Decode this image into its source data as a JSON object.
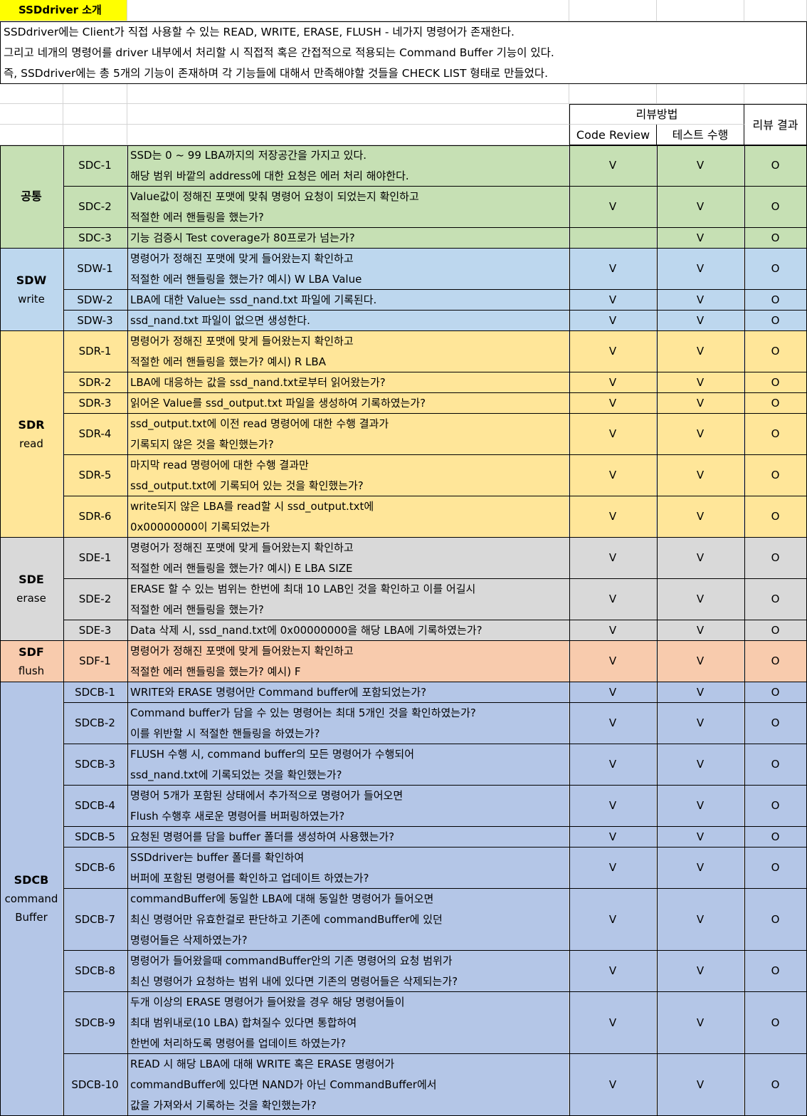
{
  "title": "SSDdriver 소개",
  "intro_lines": "SSDdriver에는 Client가 직접 사용할 수 있는 READ, WRITE, ERASE, FLUSH - 네가지 명령어가 존재한다.\n그리고 네개의 명령어를 driver 내부에서 처리할 시 직접적 혹은 간접적으로 적용되는 Command Buffer 기능이 있다.\n즉, SSDdriver에는 총 5개의 기능이 존재하며 각 기능들에 대해서 만족해야할 것들을 CHECK LIST 형태로 만들었다.",
  "header": {
    "review_method": "리뷰방법",
    "code_review": "Code Review",
    "test": "테스트 수행",
    "result": "리뷰 결과"
  },
  "colors": {
    "공통": "#c6e0b4",
    "SDW": "#bdd7ee",
    "SDR": "#ffe699",
    "SDE": "#d9d9d9",
    "SDF": "#f8cbad",
    "SDCB": "#b4c6e7",
    "title": "#ffff00"
  },
  "groups": [
    {
      "name": "공통",
      "sub": "",
      "color": "bg-green",
      "rows": [
        {
          "id": "SDC-1",
          "text": "SSD는 0 ~ 99 LBA까지의 저장공간을 가지고 있다.\n해당 범위 바깥의 address에 대한 요청은 에러 처리 해야한다.",
          "code": "V",
          "test": "V",
          "result": "O",
          "lines": 2
        },
        {
          "id": "SDC-2",
          "text": "Value값이 정해진 포맷에 맞춰 명령어 요청이 되었는지 확인하고\n적절한 에러 핸들링을 했는가?",
          "code": "V",
          "test": "V",
          "result": "O",
          "lines": 2
        },
        {
          "id": "SDC-3",
          "text": "기능 검증시 Test coverage가 80프로가 넘는가?",
          "code": "",
          "test": "V",
          "result": "O",
          "lines": 1
        }
      ]
    },
    {
      "name": "SDW",
      "sub": "write",
      "color": "bg-lblue",
      "rows": [
        {
          "id": "SDW-1",
          "text": "명령어가 정해진 포맷에 맞게 들어왔는지 확인하고\n적절한 에러 핸들링을 했는가? 예시) W LBA Value",
          "code": "V",
          "test": "V",
          "result": "O",
          "lines": 2
        },
        {
          "id": "SDW-2",
          "text": "LBA에 대한 Value는 ssd_nand.txt 파일에 기록된다.",
          "code": "V",
          "test": "V",
          "result": "O",
          "lines": 1
        },
        {
          "id": "SDW-3",
          "text": "ssd_nand.txt 파일이 없으면 생성한다.",
          "code": "V",
          "test": "V",
          "result": "O",
          "lines": 1
        }
      ]
    },
    {
      "name": "SDR",
      "sub": "read",
      "color": "bg-yellow",
      "rows": [
        {
          "id": "SDR-1",
          "text": "명령어가 정해진 포맷에 맞게 들어왔는지 확인하고\n적절한 에러 핸들링을 했는가? 예시) R LBA",
          "code": "V",
          "test": "V",
          "result": "O",
          "lines": 2
        },
        {
          "id": "SDR-2",
          "text": "LBA에 대응하는 값을 ssd_nand.txt로부터 읽어왔는가?",
          "code": "V",
          "test": "V",
          "result": "O",
          "lines": 1
        },
        {
          "id": "SDR-3",
          "text": "읽어온 Value를 ssd_output.txt 파일을 생성하여 기록하였는가?",
          "code": "V",
          "test": "V",
          "result": "O",
          "lines": 1
        },
        {
          "id": "SDR-4",
          "text": "ssd_output.txt에 이전 read 명령어에 대한 수행 결과가\n기록되지 않은 것을 확인했는가?",
          "code": "V",
          "test": "V",
          "result": "O",
          "lines": 2
        },
        {
          "id": "SDR-5",
          "text": "마지막 read 명령어에 대한 수행 결과만\nssd_output.txt에 기록되어 있는 것을 확인했는가?",
          "code": "V",
          "test": "V",
          "result": "O",
          "lines": 2
        },
        {
          "id": "SDR-6",
          "text": "write되지 않은 LBA를 read할 시 ssd_output.txt에\n0x00000000이 기록되었는가",
          "code": "V",
          "test": "V",
          "result": "O",
          "lines": 2
        }
      ]
    },
    {
      "name": "SDE",
      "sub": "erase",
      "color": "bg-grey",
      "rows": [
        {
          "id": "SDE-1",
          "text": "명령어가 정해진 포맷에 맞게 들어왔는지 확인하고\n적절한 에러 핸들링을 했는가? 예시) E LBA SIZE",
          "code": "V",
          "test": "V",
          "result": "O",
          "lines": 2
        },
        {
          "id": "SDE-2",
          "text": "ERASE 할 수 있는 범위는 한번에 최대 10 LAB인 것을 확인하고 이를 어길시\n적절한 에러 핸들링을 했는가?",
          "code": "V",
          "test": "V",
          "result": "O",
          "lines": 2
        },
        {
          "id": "SDE-3",
          "text": "Data 삭제 시, ssd_nand.txt에 0x00000000을 해당 LBA에 기록하였는가?",
          "code": "V",
          "test": "V",
          "result": "O",
          "lines": 1
        }
      ]
    },
    {
      "name": "SDF",
      "sub": "flush",
      "color": "bg-orange",
      "rows": [
        {
          "id": "SDF-1",
          "text": "명령어가 정해진 포맷에 맞게 들어왔는지 확인하고\n적절한 에러 핸들링을 했는가? 예시) F",
          "code": "V",
          "test": "V",
          "result": "O",
          "lines": 2
        }
      ]
    },
    {
      "name": "SDCB",
      "sub": "command\nBuffer",
      "color": "bg-blue",
      "rows": [
        {
          "id": "SDCB-1",
          "text": "WRITE와 ERASE 명령어만 Command buffer에 포함되었는가?",
          "code": "V",
          "test": "V",
          "result": "O",
          "lines": 1
        },
        {
          "id": "SDCB-2",
          "text": "Command buffer가 담을 수 있는 명령어는 최대 5개인 것을 확인하였는가?\n이를 위반할 시 적절한 핸들링을 하였는가?",
          "code": "V",
          "test": "V",
          "result": "O",
          "lines": 2
        },
        {
          "id": "SDCB-3",
          "text": "FLUSH 수행 시, command buffer의 모든 명령어가 수행되어\nssd_nand.txt에 기록되었는 것을 확인했는가?",
          "code": "V",
          "test": "V",
          "result": "O",
          "lines": 2
        },
        {
          "id": "SDCB-4",
          "text": "명령어 5개가 포함된 상태에서 추가적으로 명령어가 들어오면\nFlush 수행후 새로운 명령어를 버퍼링하였는가?",
          "code": "V",
          "test": "V",
          "result": "O",
          "lines": 2
        },
        {
          "id": "SDCB-5",
          "text": "요청된 명령어를 담을 buffer 폴더를 생성하여 사용했는가?",
          "code": "V",
          "test": "V",
          "result": "O",
          "lines": 1
        },
        {
          "id": "SDCB-6",
          "text": "SSDdriver는 buffer 폴더를 확인하여\n버퍼에 포함된 명령어를 확인하고 업데이트 하였는가?",
          "code": "V",
          "test": "V",
          "result": "O",
          "lines": 2
        },
        {
          "id": "SDCB-7",
          "text": "commandBuffer에 동일한 LBA에 대해 동일한 명령어가 들어오면\n최신 명령어만 유효한걸로 판단하고 기존에 commandBuffer에 있던\n명령어들은 삭제하였는가?",
          "code": "V",
          "test": "V",
          "result": "O",
          "lines": 3
        },
        {
          "id": "SDCB-8",
          "text": "명령어가 들어왔을때 commandBuffer안의 기존 명령어의 요청 범위가\n최신 명령어가 요청하는 범위 내에 있다면 기존의 명령어들은 삭제되는가?",
          "code": "V",
          "test": "V",
          "result": "O",
          "lines": 2
        },
        {
          "id": "SDCB-9",
          "text": "두개 이상의 ERASE 명령어가 들어왔을 경우 해당 명령어들이\n최대 범위내로(10 LBA) 합쳐질수 있다면 통합하여\n한번에 처리하도록 명령어를 업데이트 하였는가?",
          "code": "V",
          "test": "V",
          "result": "O",
          "lines": 3
        },
        {
          "id": "SDCB-10",
          "text": "READ 시 해당 LBA에 대해 WRITE 혹은 ERASE 명령어가\ncommandBuffer에 있다면 NAND가 아닌 CommandBuffer에서\n값을 가져와서 기록하는 것을 확인했는가?",
          "code": "V",
          "test": "V",
          "result": "O",
          "lines": 3
        }
      ]
    }
  ]
}
